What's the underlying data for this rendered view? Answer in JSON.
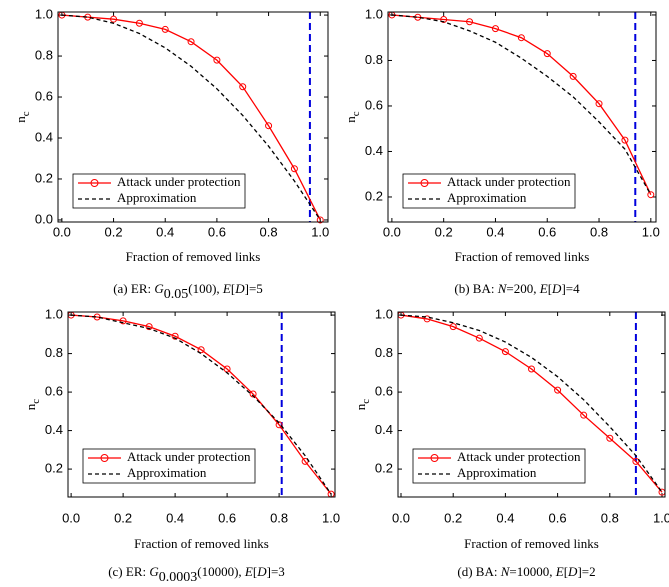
{
  "chart_data": [
    {
      "type": "line",
      "xlabel": "Fraction of removed links",
      "ylabel": "n",
      "ylabel_sub": "c",
      "caption": [
        {
          "text": "(a) ER: "
        },
        {
          "text": "G",
          "style": "italic"
        },
        {
          "text": "0.05",
          "style": "sub"
        },
        {
          "text": "(100), "
        },
        {
          "text": "E",
          "style": "italic"
        },
        {
          "text": "["
        },
        {
          "text": "D",
          "style": "italic"
        },
        {
          "text": "]=5"
        }
      ],
      "x": [
        0,
        0.1,
        0.2,
        0.3,
        0.4,
        0.5,
        0.6,
        0.7,
        0.8,
        0.9,
        1.0
      ],
      "series": [
        {
          "name": "Attack under protection",
          "color": "#ff0000",
          "marker": "circle",
          "line_style": "solid",
          "values": [
            1.0,
            0.99,
            0.98,
            0.96,
            0.93,
            0.87,
            0.78,
            0.65,
            0.46,
            0.25,
            0.0
          ]
        },
        {
          "name": "Approximation",
          "color": "#000000",
          "marker": "none",
          "line_style": "dashed",
          "values": [
            1.0,
            0.99,
            0.96,
            0.91,
            0.84,
            0.75,
            0.64,
            0.51,
            0.36,
            0.19,
            0.0
          ]
        }
      ],
      "vline": 0.96,
      "vline_color": "#0000dd",
      "xlim": [
        -0.015,
        1.03
      ],
      "ylim": [
        -0.01,
        1.015
      ],
      "xticks": [
        {
          "value": 0,
          "label": "0.0"
        },
        0.2,
        0.4,
        0.6,
        0.8,
        {
          "value": 1,
          "label": "1.0"
        }
      ],
      "yticks": [
        {
          "value": 0,
          "label": "0.0"
        },
        0.2,
        0.4,
        0.6,
        0.8,
        {
          "value": 1,
          "label": "1.0"
        }
      ],
      "legend": "lower left"
    },
    {
      "type": "line",
      "xlabel": "Fraction of removed links",
      "ylabel": "n",
      "ylabel_sub": "c",
      "caption": [
        {
          "text": "(b) BA: "
        },
        {
          "text": "N",
          "style": "italic"
        },
        {
          "text": "=200, "
        },
        {
          "text": "E",
          "style": "italic"
        },
        {
          "text": "["
        },
        {
          "text": "D",
          "style": "italic"
        },
        {
          "text": "]=4"
        }
      ],
      "x": [
        0,
        0.1,
        0.2,
        0.3,
        0.4,
        0.5,
        0.6,
        0.7,
        0.8,
        0.9,
        1.0
      ],
      "series": [
        {
          "name": "Attack under protection",
          "color": "#ff0000",
          "marker": "circle",
          "line_style": "solid",
          "values": [
            1.0,
            0.99,
            0.98,
            0.97,
            0.94,
            0.9,
            0.83,
            0.73,
            0.61,
            0.45,
            0.21
          ]
        },
        {
          "name": "Approximation",
          "color": "#000000",
          "marker": "none",
          "line_style": "dashed",
          "values": [
            1.0,
            0.99,
            0.97,
            0.93,
            0.88,
            0.81,
            0.73,
            0.64,
            0.53,
            0.41,
            0.21
          ]
        }
      ],
      "vline": 0.94,
      "vline_color": "#0000dd",
      "xlim": [
        -0.015,
        1.02
      ],
      "ylim": [
        0.09,
        1.013
      ],
      "xticks": [
        {
          "value": 0,
          "label": "0.0"
        },
        0.2,
        0.4,
        0.6,
        0.8,
        {
          "value": 1,
          "label": "1.0"
        }
      ],
      "yticks": [
        0.2,
        0.4,
        0.6,
        0.8,
        {
          "value": 1,
          "label": "1.0"
        }
      ],
      "legend": "lower left"
    },
    {
      "type": "line",
      "xlabel": "Fraction of removed links",
      "ylabel": "n",
      "ylabel_sub": "c",
      "caption": [
        {
          "text": "(c) ER: "
        },
        {
          "text": "G",
          "style": "italic"
        },
        {
          "text": "0.0003",
          "style": "sub"
        },
        {
          "text": "(10000), "
        },
        {
          "text": "E",
          "style": "italic"
        },
        {
          "text": "["
        },
        {
          "text": "D",
          "style": "italic"
        },
        {
          "text": "]=3"
        }
      ],
      "x": [
        0,
        0.1,
        0.2,
        0.3,
        0.4,
        0.5,
        0.6,
        0.7,
        0.8,
        0.9,
        1.0
      ],
      "series": [
        {
          "name": "Attack under protection",
          "color": "#ff0000",
          "marker": "circle",
          "line_style": "solid",
          "values": [
            1.0,
            0.99,
            0.97,
            0.94,
            0.89,
            0.82,
            0.72,
            0.59,
            0.43,
            0.24,
            0.07
          ]
        },
        {
          "name": "Approximation",
          "color": "#000000",
          "marker": "none",
          "line_style": "dashed",
          "values": [
            1.0,
            0.99,
            0.96,
            0.93,
            0.88,
            0.8,
            0.7,
            0.58,
            0.44,
            0.27,
            0.07
          ]
        }
      ],
      "vline": 0.81,
      "vline_color": "#0000dd",
      "xlim": [
        -0.012,
        1.015
      ],
      "ylim": [
        0.055,
        1.016
      ],
      "xticks": [
        {
          "value": 0,
          "label": "0.0"
        },
        0.2,
        0.4,
        0.6,
        0.8,
        {
          "value": 1,
          "label": "1.0"
        }
      ],
      "yticks": [
        0.2,
        0.4,
        0.6,
        0.8,
        {
          "value": 1,
          "label": "1.0"
        }
      ],
      "legend": "lower left"
    },
    {
      "type": "line",
      "xlabel": "Fraction of removed links",
      "ylabel": "n",
      "ylabel_sub": "c",
      "caption": [
        {
          "text": "(d) BA: "
        },
        {
          "text": "N",
          "style": "italic"
        },
        {
          "text": "=10000, "
        },
        {
          "text": "E",
          "style": "italic"
        },
        {
          "text": "["
        },
        {
          "text": "D",
          "style": "italic"
        },
        {
          "text": "]=2"
        }
      ],
      "x": [
        0,
        0.1,
        0.2,
        0.3,
        0.4,
        0.5,
        0.6,
        0.7,
        0.8,
        0.9,
        1.0
      ],
      "series": [
        {
          "name": "Attack under protection",
          "color": "#ff0000",
          "marker": "circle",
          "line_style": "solid",
          "values": [
            1.0,
            0.98,
            0.94,
            0.88,
            0.81,
            0.72,
            0.61,
            0.48,
            0.36,
            0.24,
            0.08
          ]
        },
        {
          "name": "Approximation",
          "color": "#000000",
          "marker": "none",
          "line_style": "dashed",
          "values": [
            1.0,
            0.99,
            0.96,
            0.92,
            0.86,
            0.78,
            0.68,
            0.56,
            0.42,
            0.27,
            0.08
          ]
        }
      ],
      "vline": 0.9,
      "vline_color": "#0000dd",
      "xlim": [
        -0.0115,
        1.0115
      ],
      "ylim": [
        0.055,
        1.016
      ],
      "xticks": [
        {
          "value": 0,
          "label": "0.0"
        },
        0.2,
        0.4,
        0.6,
        0.8,
        {
          "value": 1,
          "label": "1.0"
        }
      ],
      "yticks": [
        0.2,
        0.4,
        0.6,
        0.8,
        {
          "value": 1,
          "label": "1.0"
        }
      ],
      "legend": "lower left"
    }
  ]
}
